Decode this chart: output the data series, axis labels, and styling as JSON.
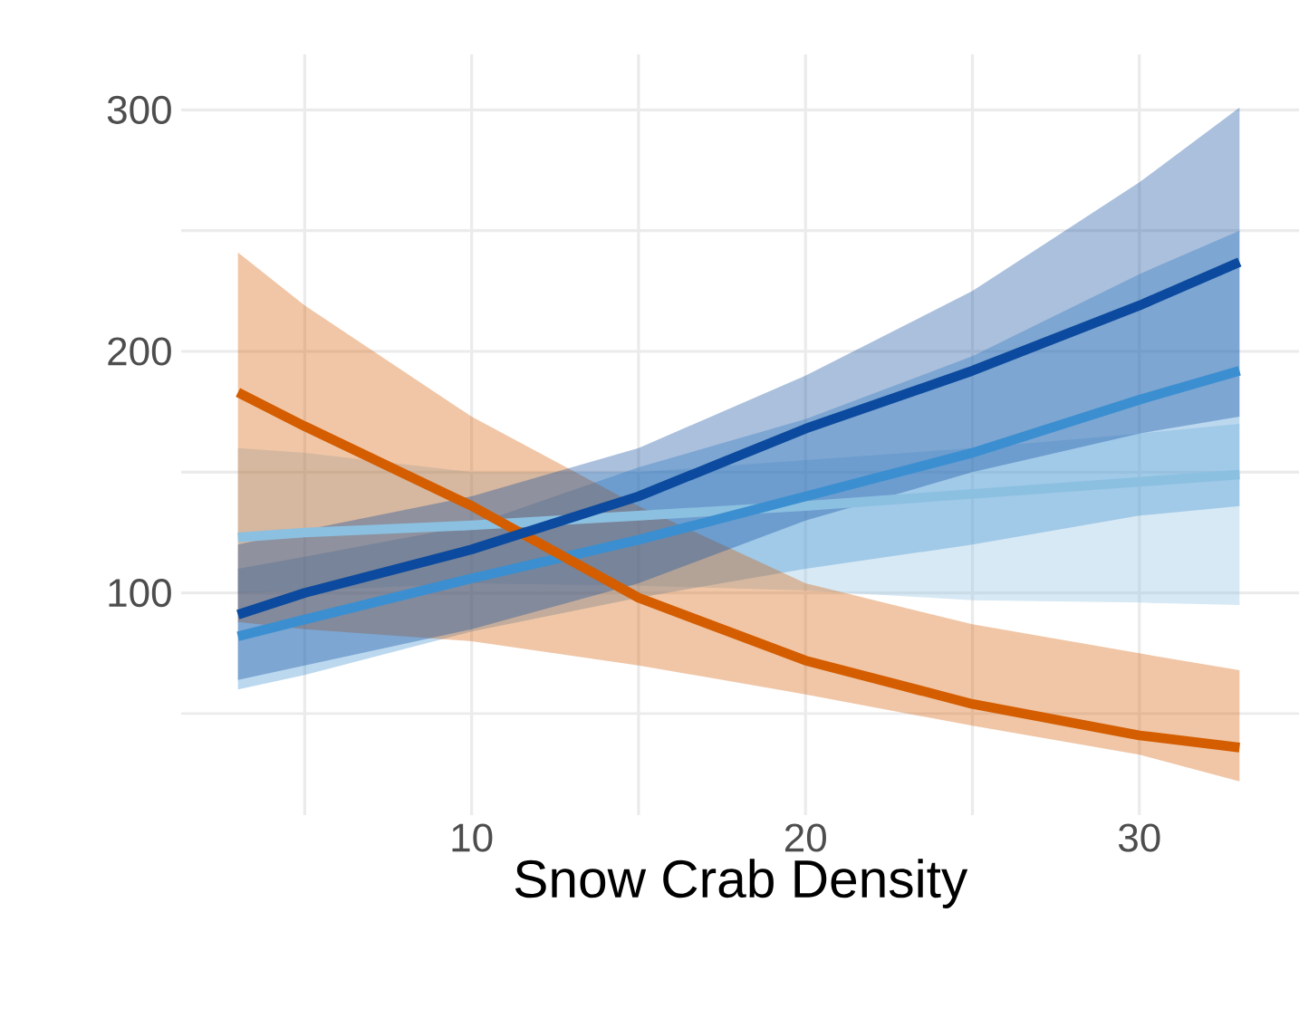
{
  "chart_data": {
    "type": "line",
    "xlabel": "Snow Crab Density",
    "x": [
      3,
      5,
      10,
      15,
      20,
      25,
      30,
      33
    ],
    "xlim": [
      1.3,
      34.8
    ],
    "ylim": [
      8,
      323
    ],
    "xticks": [
      {
        "value": 5,
        "label": null
      },
      10,
      {
        "value": 15,
        "label": null
      },
      20,
      {
        "value": 25,
        "label": null
      },
      30
    ],
    "yticks": [
      {
        "value": 50,
        "label": null
      },
      100,
      {
        "value": 150,
        "label": null
      },
      200,
      {
        "value": 250,
        "label": null
      },
      300
    ],
    "grid": true,
    "legend": false,
    "marker": "none",
    "line_style": "solid",
    "series": [
      {
        "color": "#8cc0e0",
        "values": [
          123,
          125,
          128,
          132,
          136,
          141,
          146,
          149
        ],
        "lower": [
          100,
          101,
          104,
          103,
          101,
          97,
          96,
          95
        ],
        "upper": [
          160,
          158,
          150,
          150,
          155,
          160,
          166,
          170
        ]
      },
      {
        "color": "#3b8fd0",
        "values": [
          82,
          89,
          106,
          122,
          140,
          158,
          180,
          192
        ],
        "lower": [
          60,
          66,
          84,
          98,
          110,
          120,
          132,
          136
        ],
        "upper": [
          110,
          115,
          128,
          152,
          172,
          198,
          232,
          250
        ]
      },
      {
        "color": "#d45d00",
        "values": [
          183,
          169,
          136,
          98,
          72,
          54,
          41,
          36
        ],
        "lower": [
          88,
          85,
          80,
          70,
          58,
          45,
          33,
          22
        ],
        "upper": [
          241,
          219,
          173,
          136,
          104,
          87,
          75,
          68
        ]
      },
      {
        "color": "#0b4a9e",
        "values": [
          91,
          100,
          118,
          140,
          168,
          192,
          219,
          237
        ],
        "lower": [
          64,
          70,
          85,
          104,
          130,
          150,
          166,
          173
        ],
        "upper": [
          120,
          126,
          140,
          160,
          190,
          225,
          270,
          301
        ]
      }
    ]
  }
}
